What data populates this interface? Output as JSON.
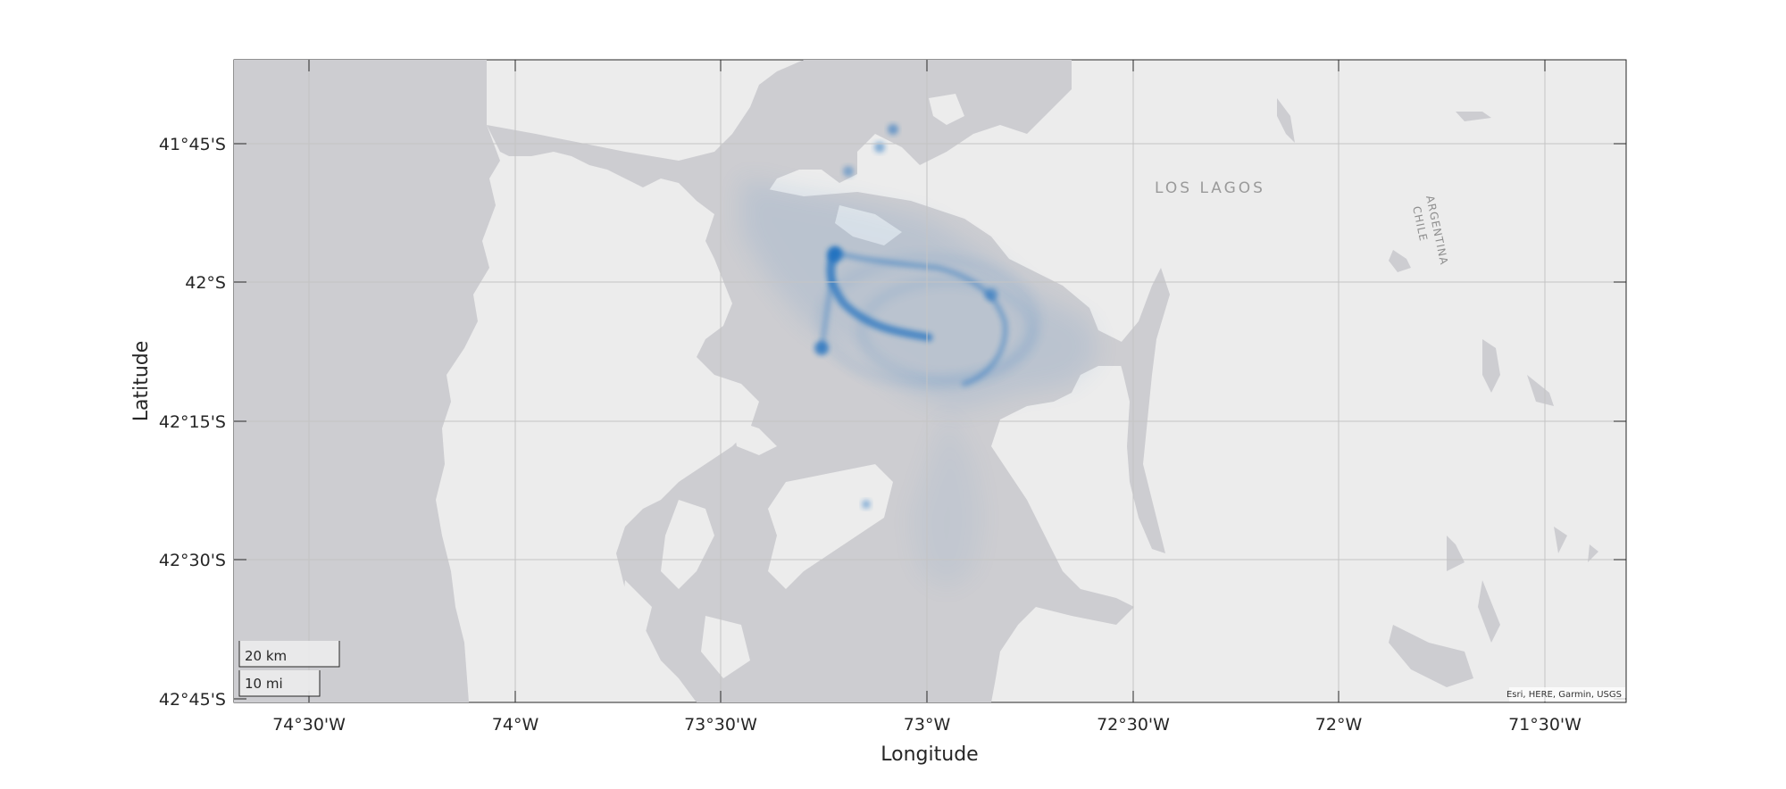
{
  "axes": {
    "xlabel": "Longitude",
    "ylabel": "Latitude",
    "x_ticks": [
      "74°30'W",
      "74°W",
      "73°30'W",
      "73°W",
      "72°30'W",
      "72°W",
      "71°30'W"
    ],
    "y_ticks": [
      "41°45'S",
      "42°S",
      "42°15'S",
      "42°30'S",
      "42°45'S"
    ]
  },
  "map": {
    "basemap": "light gray canvas",
    "colors": {
      "water": "#cdcdd1",
      "land": "#ececec",
      "density": "#1f6fc0",
      "grid": "#c4c4c4"
    },
    "labels": {
      "region": "LOS LAGOS",
      "border_north": "ARGENTINA",
      "border_south": "CHILE"
    },
    "scalebar": {
      "metric": "20 km",
      "imperial": "10 mi"
    },
    "attribution": "Esri, HERE, Garmin, USGS"
  }
}
